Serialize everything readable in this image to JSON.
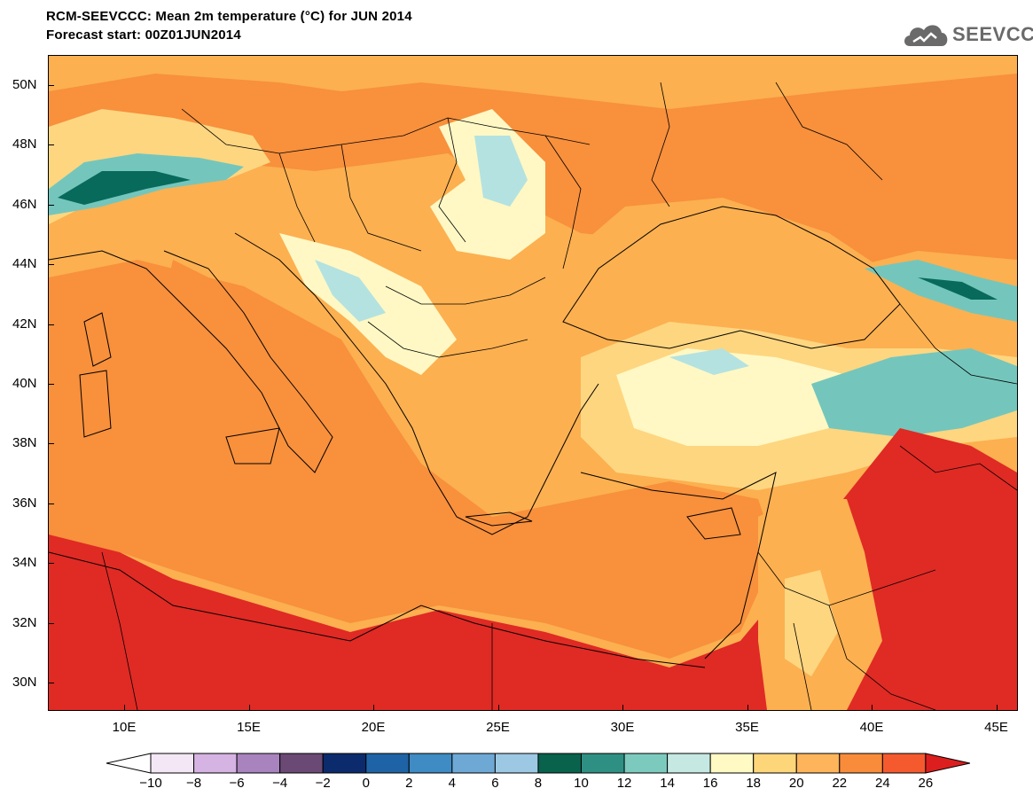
{
  "header": {
    "title_line1": "RCM-SEEVCCC: Mean 2m temperature (°C) for JUN 2014",
    "title_line2": "Forecast start: 00Z01JUN2014",
    "logo_text": "SEEVCCC"
  },
  "map": {
    "lat_labels": [
      "50N",
      "48N",
      "46N",
      "44N",
      "42N",
      "40N",
      "38N",
      "36N",
      "34N",
      "32N",
      "30N"
    ],
    "lon_labels": [
      "10E",
      "15E",
      "20E",
      "25E",
      "30E",
      "35E",
      "40E",
      "45E"
    ],
    "colors": {
      "sea": "#f8903c",
      "hot": "#e02a24",
      "warm": "#f86b30",
      "mild": "#fcb050",
      "cool": "#fed680",
      "pale": "#fff8c4",
      "cyan": "#b4e2e0",
      "teal": "#74c6bc",
      "deepteal": "#2a8c80",
      "darkteal": "#086a5a",
      "border": "#000000"
    }
  },
  "colorbar": {
    "labels": [
      "−10",
      "−8",
      "−6",
      "−4",
      "−2",
      "0",
      "2",
      "4",
      "6",
      "8",
      "10",
      "12",
      "14",
      "16",
      "18",
      "20",
      "22",
      "24",
      "26"
    ],
    "colors": [
      "#f3e7f5",
      "#d5b3e2",
      "#a883bd",
      "#6a4a74",
      "#0b2b6c",
      "#1e63a6",
      "#3f8bc4",
      "#6ea9d6",
      "#9dc8e4",
      "#08624c",
      "#2e9082",
      "#7ccabe",
      "#c6e8e2",
      "#fff9c4",
      "#fed67a",
      "#fdb45a",
      "#f88c3a",
      "#f55a2e",
      "#dd1e1e"
    ]
  }
}
